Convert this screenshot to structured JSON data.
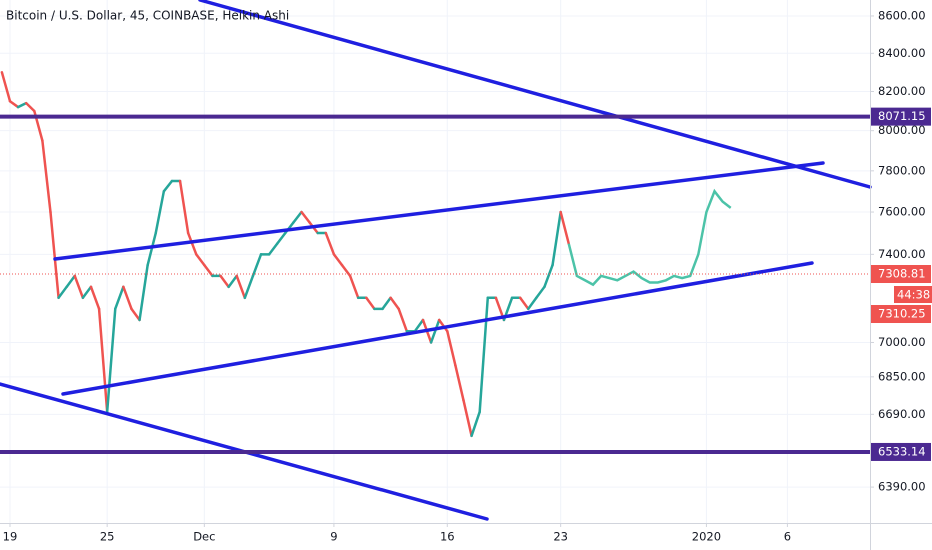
{
  "chart_data": {
    "type": "line",
    "title": "Bitcoin / U.S. Dollar, 45, COINBASE, Heikin Ashi",
    "x": [
      -0.5,
      0,
      0.5,
      1,
      1.5,
      2,
      2.5,
      3,
      3.5,
      4,
      4.5,
      5,
      5.5,
      6,
      6.5,
      7,
      7.5,
      8,
      8.5,
      9,
      9.5,
      10,
      10.5,
      11,
      11.5,
      12,
      12.5,
      13,
      13.5,
      14,
      14.5,
      15,
      15.5,
      16,
      16.5,
      17,
      17.5,
      18,
      18.5,
      19,
      19.5,
      20,
      20.5,
      21,
      21.5,
      22,
      22.5,
      23,
      23.5,
      24,
      24.5,
      25,
      25.5,
      26,
      26.5,
      27,
      27.5,
      28,
      28.5,
      29,
      29.5,
      30,
      30.5,
      31,
      31.5,
      32,
      32.5,
      33,
      33.5,
      34,
      34.5,
      35,
      35.5,
      36,
      36.5,
      37,
      37.5,
      38,
      38.5,
      39,
      39.5,
      40,
      40.5,
      41,
      41.5,
      42,
      42.5,
      43,
      43.5,
      44,
      44.5
    ],
    "series": [
      {
        "up_color": "#26a69a",
        "down_color": "#ef5350",
        "values": [
          8300,
          8150,
          8120,
          8140,
          8100,
          7950,
          7600,
          7200,
          7250,
          7300,
          7200,
          7250,
          7150,
          6700,
          7150,
          7250,
          7150,
          7100,
          7350,
          7500,
          7700,
          7750,
          7750,
          7500,
          7400,
          7350,
          7300,
          7300,
          7250,
          7300,
          7200,
          7300,
          7400,
          7400,
          7450,
          7500,
          7550,
          7600,
          7550,
          7500,
          7500,
          7400,
          7350,
          7300,
          7200,
          7200,
          7150,
          7150,
          7200,
          7150,
          7050,
          7050,
          7100,
          7000,
          7100,
          7050,
          6900,
          6750,
          6600,
          6700,
          7200,
          7200,
          7100,
          7200,
          7200,
          7150,
          7200,
          7250,
          7350,
          7600,
          7450,
          null,
          null,
          null,
          null,
          null,
          null,
          null,
          null,
          null,
          null,
          null,
          null,
          null,
          null,
          null,
          null,
          null,
          null,
          null,
          null
        ]
      },
      {
        "color": "#4cc3a8",
        "values": [
          null,
          null,
          null,
          null,
          null,
          null,
          null,
          null,
          null,
          null,
          null,
          null,
          null,
          null,
          null,
          null,
          null,
          null,
          null,
          null,
          null,
          null,
          null,
          null,
          null,
          null,
          null,
          null,
          null,
          null,
          null,
          null,
          null,
          null,
          null,
          null,
          null,
          null,
          null,
          null,
          null,
          null,
          null,
          null,
          null,
          null,
          null,
          null,
          null,
          null,
          null,
          null,
          null,
          null,
          null,
          null,
          null,
          null,
          null,
          null,
          null,
          null,
          null,
          null,
          null,
          null,
          null,
          null,
          null,
          null,
          7450,
          7300,
          7280,
          7260,
          7300,
          7290,
          7280,
          7300,
          7320,
          7290,
          7270,
          7270,
          7280,
          7300,
          7290,
          7300,
          7400,
          7600,
          7700,
          7650,
          7620
        ]
      }
    ],
    "xlim": [
      -0.617,
      53.1
    ],
    "xticks": [
      {
        "value": 0,
        "label": "19"
      },
      {
        "value": 6,
        "label": "25"
      },
      {
        "value": 12,
        "label": "Dec"
      },
      {
        "value": 20,
        "label": "9"
      },
      {
        "value": 27,
        "label": "16"
      },
      {
        "value": 34,
        "label": "23"
      },
      {
        "value": 43,
        "label": "2020"
      },
      {
        "value": 48,
        "label": "6"
      }
    ],
    "ylim": [
      6247,
      8687
    ],
    "log_scale": true,
    "yticks": [
      {
        "value": 6390,
        "label": "6390.00"
      },
      {
        "value": 6690,
        "label": "6690.00"
      },
      {
        "value": 6850,
        "label": "6850.00"
      },
      {
        "value": 7000,
        "label": "7000.00"
      },
      {
        "value": 7400,
        "label": "7400.00"
      },
      {
        "value": 7600,
        "label": "7600.00"
      },
      {
        "value": 7800,
        "label": "7800.00"
      },
      {
        "value": 8000,
        "label": "8000.00"
      },
      {
        "value": 8200,
        "label": "8200.00"
      },
      {
        "value": 8400,
        "label": "8400.00"
      },
      {
        "value": 8600,
        "label": "8600.00"
      }
    ],
    "levels": [
      8071.15,
      6533.14
    ],
    "level_color": "#4b2991",
    "last_price": 7308.81,
    "countdown": "44:38",
    "ask_price": 7310.25,
    "price_tag_color": "#ef5350"
  }
}
